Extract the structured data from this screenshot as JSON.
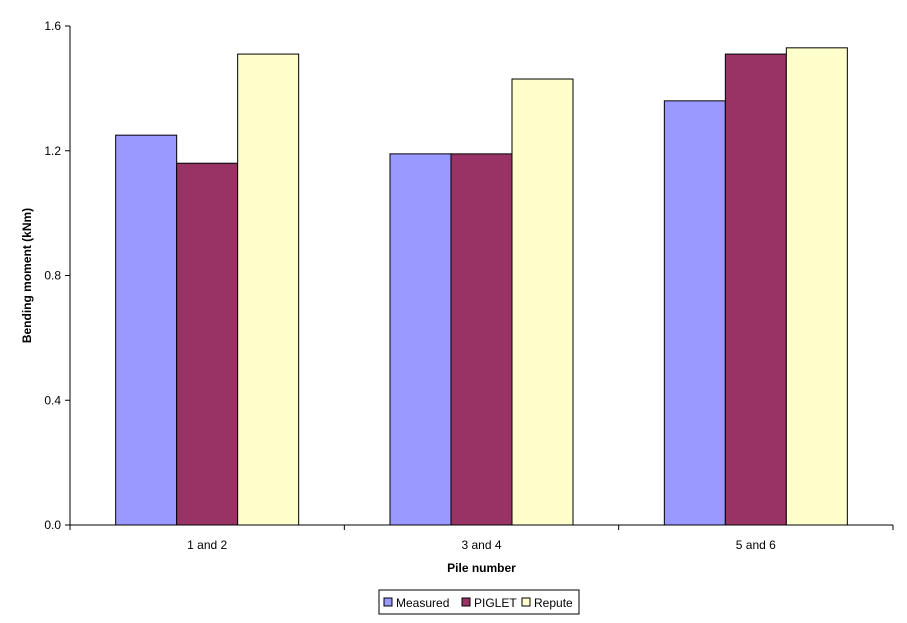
{
  "chart_data": {
    "type": "bar",
    "title": "",
    "xlabel": "Pile number",
    "ylabel": "Bending moment (kNm)",
    "categories": [
      "1 and 2",
      "3 and 4",
      "5 and 6"
    ],
    "series": [
      {
        "name": "Measured",
        "color": "#9999ff",
        "values": [
          1.25,
          1.19,
          1.36
        ]
      },
      {
        "name": "PIGLET",
        "color": "#993366",
        "values": [
          1.16,
          1.19,
          1.51
        ]
      },
      {
        "name": "Repute",
        "color": "#ffffcc",
        "values": [
          1.51,
          1.43,
          1.53
        ]
      }
    ],
    "ylim": [
      0.0,
      1.6
    ],
    "yticks": [
      "0.0",
      "0.4",
      "0.8",
      "1.2",
      "1.6"
    ],
    "grid": false,
    "legend_position": "bottom"
  }
}
